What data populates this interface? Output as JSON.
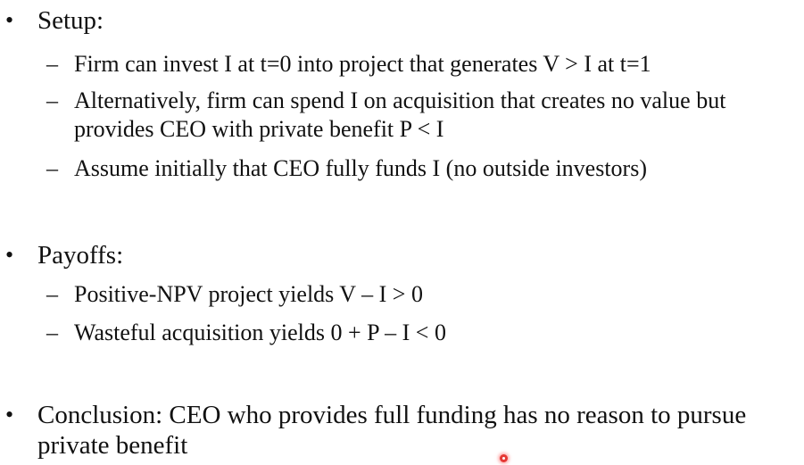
{
  "bullets": [
    {
      "text": "Setup:",
      "subs": [
        "Firm can invest I at t=0 into project that generates V > I at t=1",
        "Alternatively, firm can spend I on acquisition that creates no value but provides CEO with private benefit P < I",
        "Assume initially that CEO fully funds I (no outside investors)"
      ]
    },
    {
      "text": "Payoffs:",
      "subs": [
        "Positive-NPV project yields V – I > 0",
        "Wasteful acquisition yields 0 + P – I < 0"
      ]
    },
    {
      "text": "Conclusion: CEO who provides full funding has no reason to pursue private benefit",
      "subs": []
    }
  ],
  "symbols": {
    "bullet": "•",
    "dash": "–"
  },
  "colors": {
    "text": "#111111",
    "background": "#ffffff",
    "laser_pointer": "#e53935"
  }
}
